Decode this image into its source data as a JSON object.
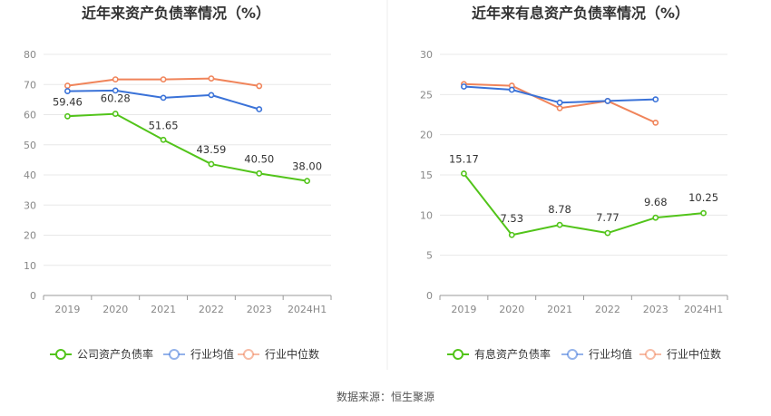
{
  "source_label": "数据来源：恒生聚源",
  "colors": {
    "company": "#52c41a",
    "industry_avg": "#3a72d8",
    "industry_median": "#f0845a",
    "grid": "#e8e8e8",
    "axis": "#cccccc"
  },
  "chart_data": [
    {
      "type": "line",
      "title": "近年来资产负债率情况（%）",
      "categories": [
        "2019",
        "2020",
        "2021",
        "2022",
        "2023",
        "2024H1"
      ],
      "ylim": [
        0,
        80
      ],
      "yticks": [
        0,
        10,
        20,
        30,
        40,
        50,
        60,
        70,
        80
      ],
      "ytick_labels": [
        "0",
        "10",
        "20",
        "30",
        "40",
        "50",
        "60",
        "70",
        "80"
      ],
      "series": [
        {
          "name": "公司资产负债率",
          "key": "company",
          "values": [
            59.46,
            60.28,
            51.65,
            43.59,
            40.5,
            38.0
          ],
          "labels": [
            "59.46",
            "60.28",
            "51.65",
            "43.59",
            "40.50",
            "38.00"
          ]
        },
        {
          "name": "行业均值",
          "key": "industry_avg",
          "values": [
            67.8,
            68.0,
            65.6,
            66.5,
            61.8,
            null
          ]
        },
        {
          "name": "行业中位数",
          "key": "industry_median",
          "values": [
            69.6,
            71.7,
            71.7,
            72.0,
            69.5,
            null
          ]
        }
      ],
      "grid": true,
      "legend": "bottom"
    },
    {
      "type": "line",
      "title": "近年来有息资产负债率情况（%）",
      "categories": [
        "2019",
        "2020",
        "2021",
        "2022",
        "2023",
        "2024H1"
      ],
      "ylim": [
        0,
        30
      ],
      "yticks": [
        0,
        5,
        10,
        15,
        20,
        25,
        30
      ],
      "ytick_labels": [
        "0",
        "5",
        "10",
        "15",
        "20",
        "25",
        "30"
      ],
      "series": [
        {
          "name": "有息资产负债率",
          "key": "company",
          "values": [
            15.17,
            7.53,
            8.78,
            7.77,
            9.68,
            10.25
          ],
          "labels": [
            "15.17",
            "7.53",
            "8.78",
            "7.77",
            "9.68",
            "10.25"
          ]
        },
        {
          "name": "行业均值",
          "key": "industry_avg",
          "values": [
            26.0,
            25.6,
            24.0,
            24.2,
            24.4,
            null
          ]
        },
        {
          "name": "行业中位数",
          "key": "industry_median",
          "values": [
            26.3,
            26.1,
            23.3,
            24.2,
            21.5,
            null
          ]
        }
      ],
      "grid": true,
      "legend": "bottom"
    }
  ]
}
